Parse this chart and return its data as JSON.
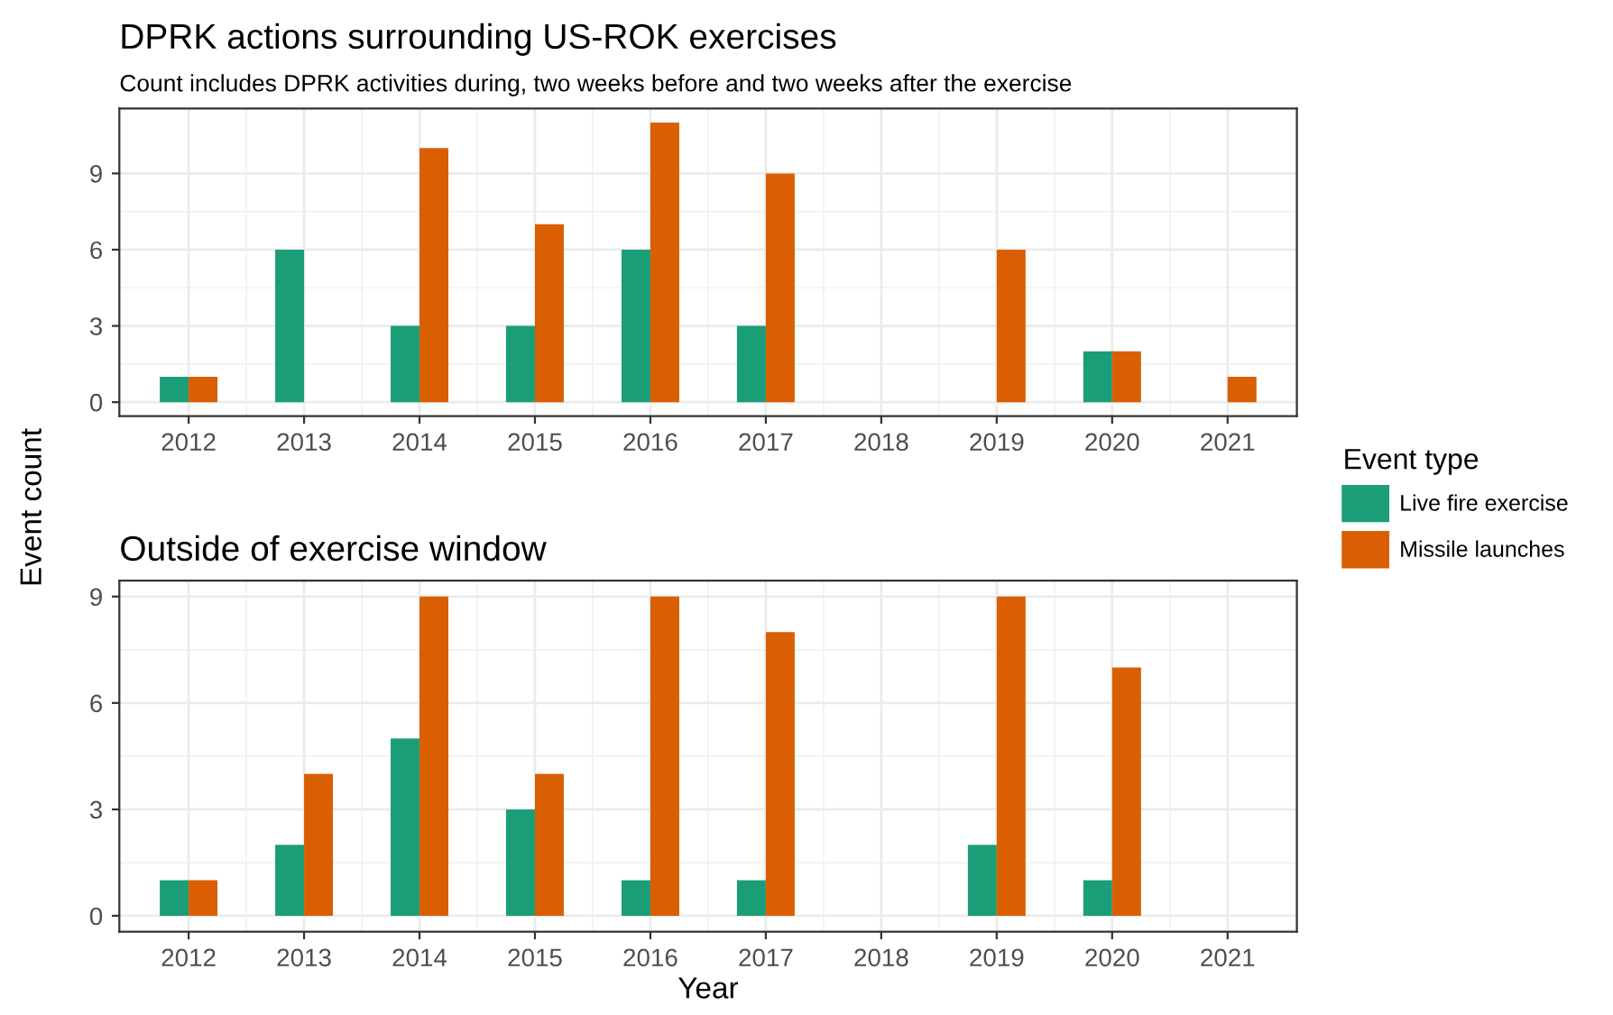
{
  "chart_data": [
    {
      "type": "bar",
      "title": "DPRK actions surrounding US-ROK exercises",
      "subtitle": "Count includes DPRK activities during, two weeks before and two weeks after the exercise",
      "ylabel": "Event count",
      "legend_title": "Event type",
      "legend": "right",
      "categories": [
        "2012",
        "2013",
        "2014",
        "2015",
        "2016",
        "2017",
        "2018",
        "2019",
        "2020",
        "2021"
      ],
      "series": [
        {
          "name": "Live fire exercise",
          "color": "#1b9e77",
          "values": [
            1,
            6,
            3,
            3,
            6,
            3,
            null,
            null,
            2,
            null
          ]
        },
        {
          "name": "Missile launches",
          "color": "#d95f02",
          "values": [
            1,
            null,
            10,
            7,
            11,
            9,
            null,
            6,
            2,
            1
          ]
        }
      ],
      "ylim": [
        -0.55,
        11.55
      ],
      "yticks": [
        0,
        3,
        6,
        9
      ],
      "grid": true
    },
    {
      "type": "bar",
      "title": "Outside of exercise window",
      "xlabel": "Year",
      "categories": [
        "2012",
        "2013",
        "2014",
        "2015",
        "2016",
        "2017",
        "2018",
        "2019",
        "2020",
        "2021"
      ],
      "series": [
        {
          "color": "#1b9e77",
          "values": [
            1,
            2,
            5,
            3,
            1,
            1,
            null,
            2,
            1,
            null
          ]
        },
        {
          "color": "#d95f02",
          "values": [
            1,
            4,
            9,
            4,
            9,
            8,
            null,
            9,
            7,
            null
          ]
        }
      ],
      "ylim": [
        -0.45,
        9.45
      ],
      "yticks": [
        0,
        3,
        6,
        9
      ],
      "grid": true
    }
  ]
}
